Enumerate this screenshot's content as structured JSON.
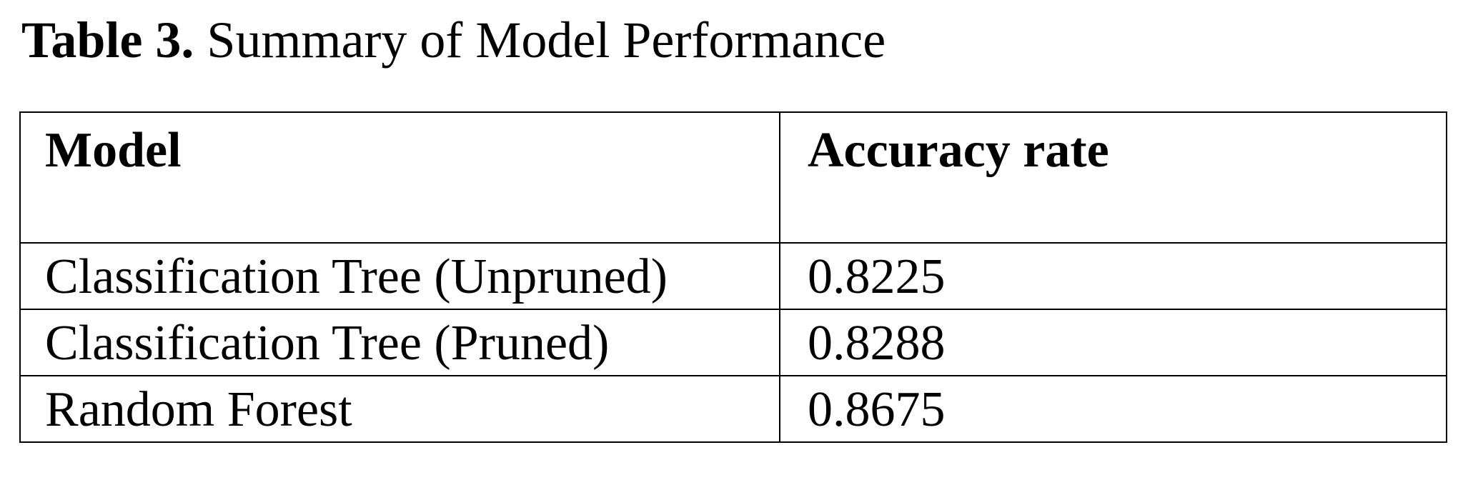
{
  "caption": {
    "label": "Table 3.",
    "title": "Summary of Model Performance"
  },
  "table": {
    "headers": [
      "Model",
      "Accuracy rate"
    ],
    "rows": [
      [
        "Classification Tree (Unpruned)",
        "0.8225"
      ],
      [
        "Classification Tree (Pruned)",
        "0.8288"
      ],
      [
        "Random Forest",
        "0.8675"
      ]
    ]
  }
}
